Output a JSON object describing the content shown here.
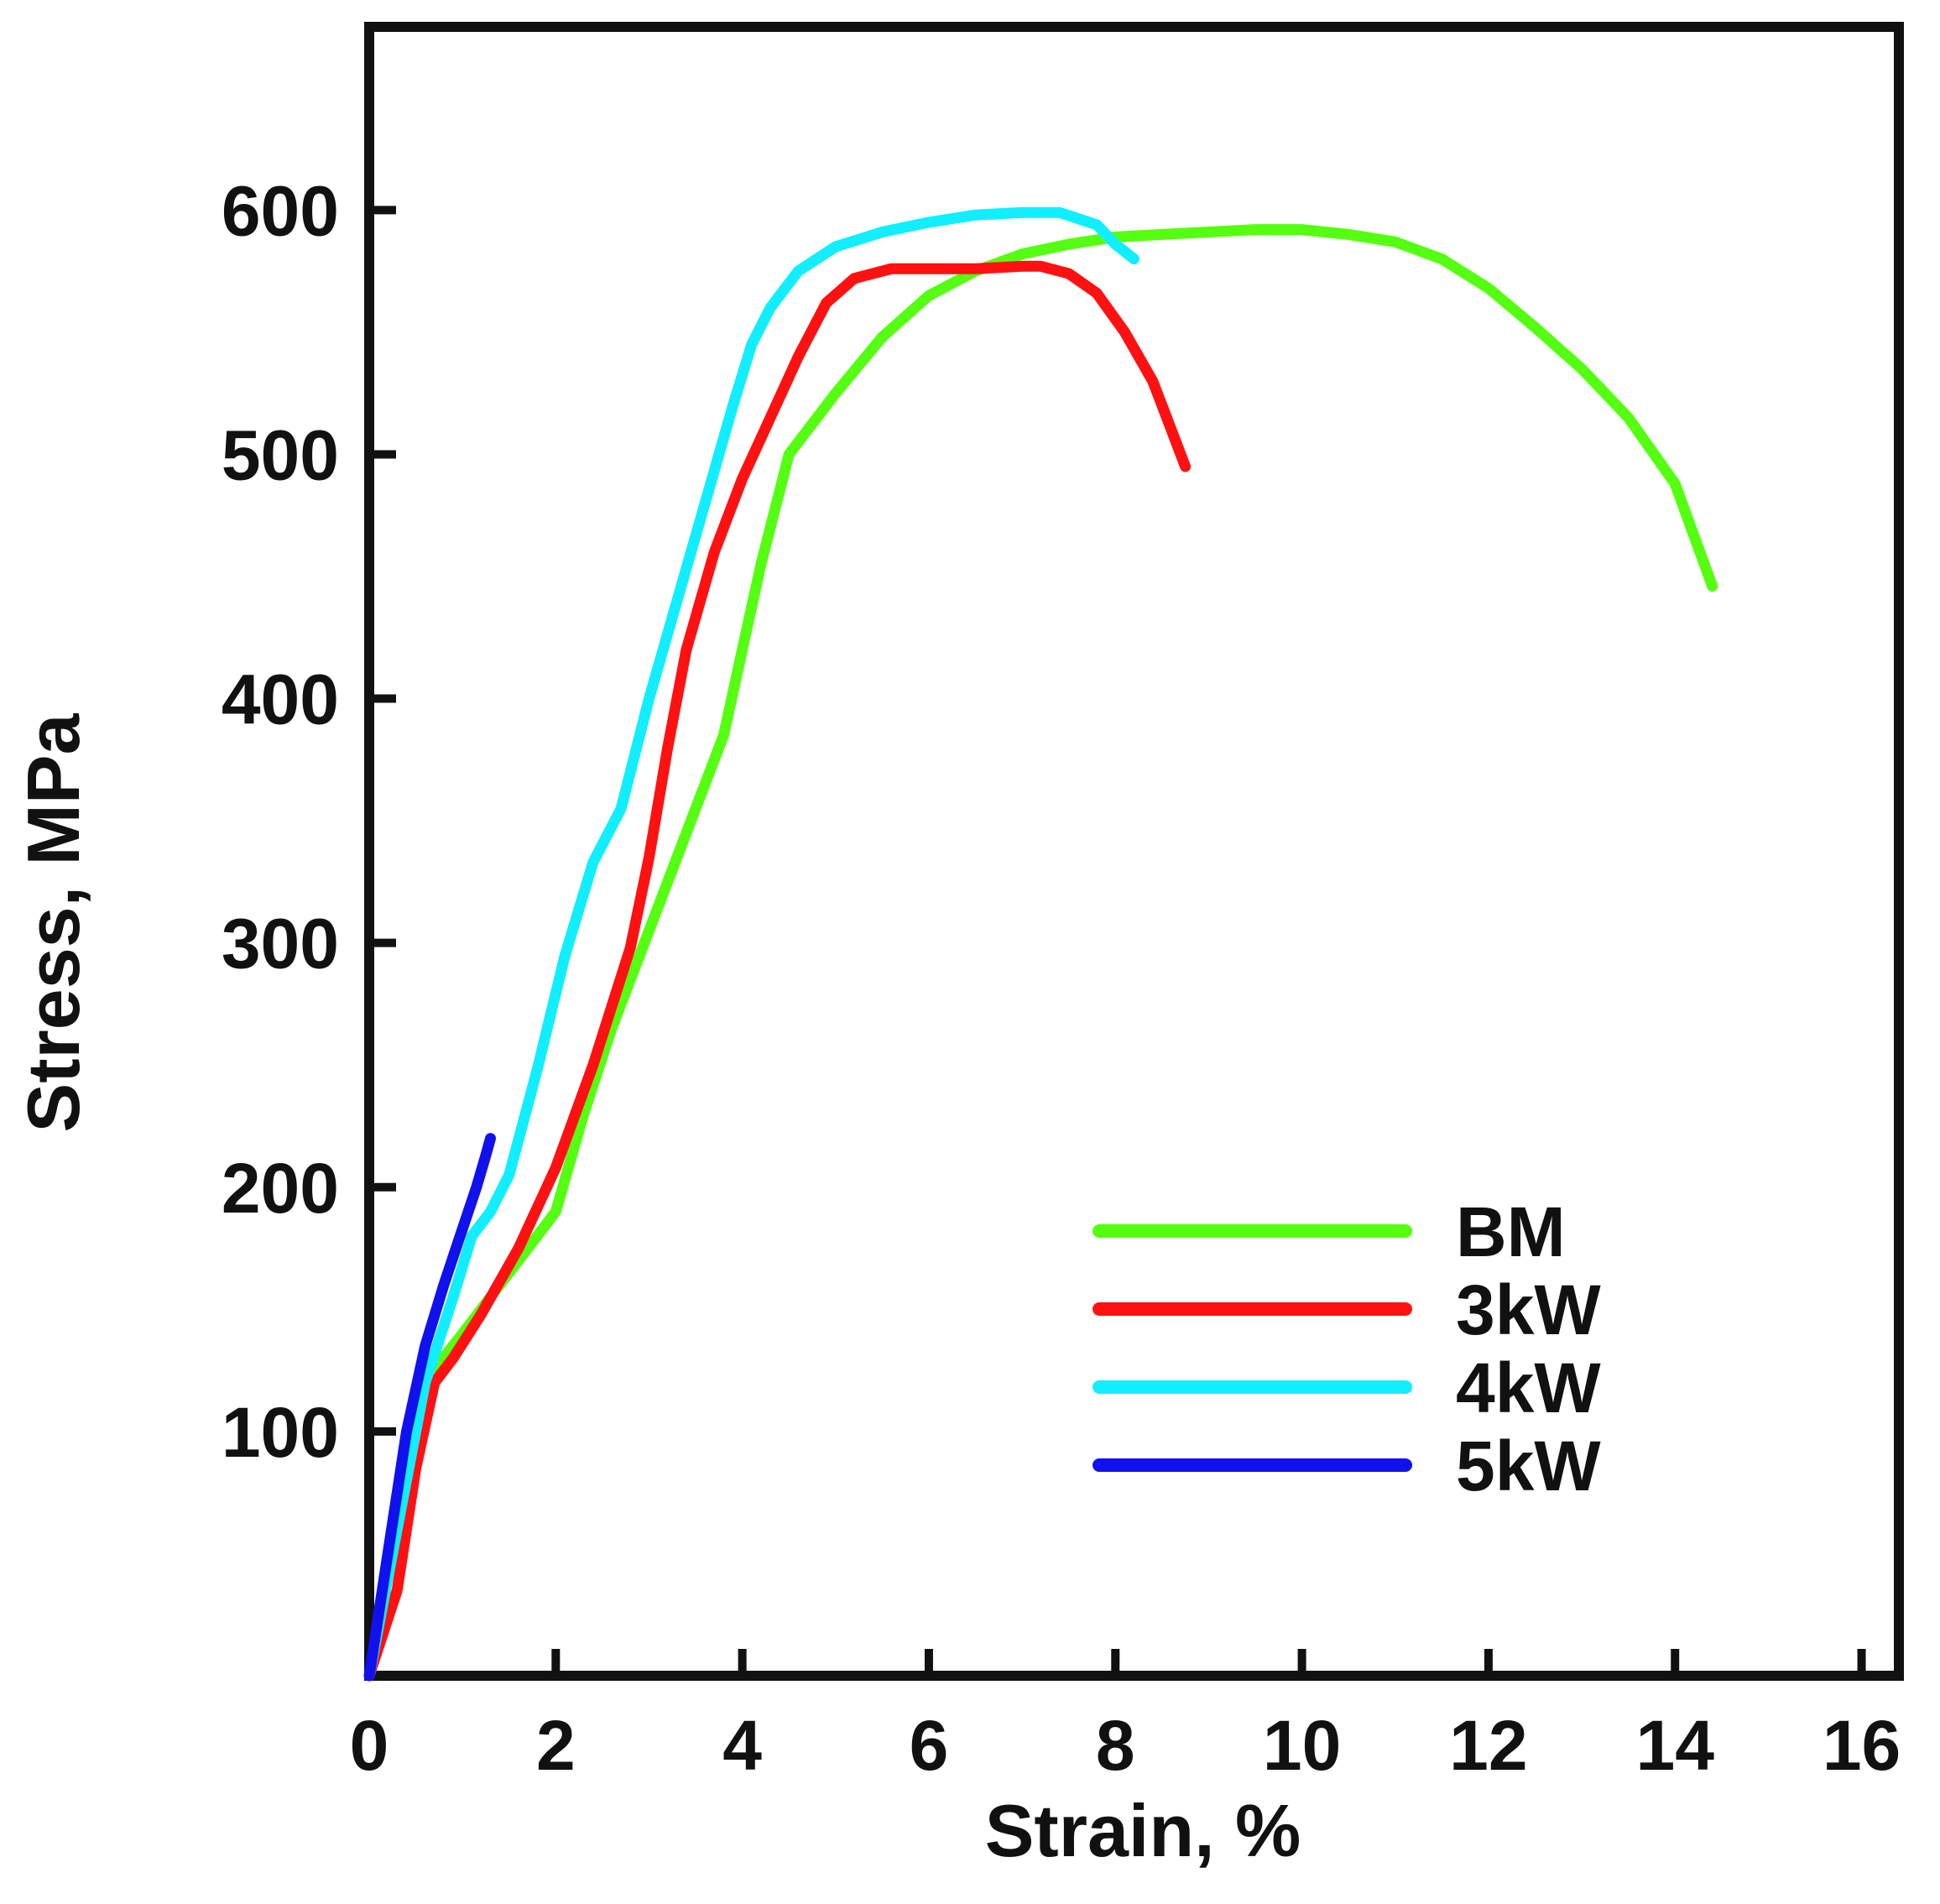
{
  "chart_data": {
    "type": "line",
    "title": "",
    "xlabel": "Strain, %",
    "ylabel": "Stress, MPa",
    "xlim": [
      0,
      16.4
    ],
    "ylim": [
      0,
      675
    ],
    "x_ticks": [
      0,
      2,
      4,
      6,
      8,
      10,
      12,
      14,
      16
    ],
    "y_ticks": [
      100,
      200,
      300,
      400,
      500,
      600
    ],
    "grid": false,
    "legend_position": "lower-right",
    "series": [
      {
        "name": "BM",
        "color": "#55ff11",
        "x": [
          0.0,
          0.3,
          0.55,
          0.75,
          1.0,
          1.3,
          1.7,
          2.0,
          2.3,
          2.6,
          3.0,
          3.4,
          3.8,
          4.0,
          4.2,
          4.5,
          5.0,
          5.5,
          6.0,
          6.5,
          7.0,
          7.5,
          8.0,
          8.5,
          9.0,
          9.5,
          10.0,
          10.5,
          11.0,
          11.5,
          12.0,
          12.5,
          13.0,
          13.5,
          14.0,
          14.4
        ],
        "y": [
          0,
          60,
          110,
          128,
          140,
          155,
          175,
          190,
          230,
          265,
          305,
          345,
          385,
          420,
          455,
          500,
          525,
          548,
          565,
          575,
          582,
          586,
          589,
          590,
          591,
          592,
          592,
          590,
          587,
          580,
          568,
          552,
          535,
          515,
          488,
          446
        ]
      },
      {
        "name": "3kW",
        "color": "#ff1111",
        "x": [
          0.0,
          0.3,
          0.5,
          0.7,
          0.9,
          1.2,
          1.6,
          2.0,
          2.4,
          2.8,
          3.0,
          3.2,
          3.4,
          3.7,
          4.0,
          4.3,
          4.6,
          4.9,
          5.2,
          5.6,
          6.0,
          6.5,
          7.0,
          7.2,
          7.5,
          7.8,
          8.1,
          8.4,
          8.6,
          8.75
        ],
        "y": [
          0,
          35,
          85,
          120,
          130,
          148,
          175,
          208,
          250,
          298,
          335,
          380,
          420,
          460,
          490,
          515,
          540,
          562,
          572,
          576,
          576,
          576,
          577,
          577,
          574,
          566,
          550,
          530,
          510,
          495
        ]
      },
      {
        "name": "4kW",
        "color": "#11eeff",
        "x": [
          0.0,
          0.3,
          0.6,
          0.9,
          1.1,
          1.3,
          1.5,
          1.8,
          2.1,
          2.4,
          2.7,
          3.0,
          3.3,
          3.6,
          3.9,
          4.1,
          4.3,
          4.6,
          5.0,
          5.5,
          6.0,
          6.5,
          7.0,
          7.4,
          7.8,
          8.0,
          8.2
        ],
        "y": [
          0,
          60,
          120,
          155,
          180,
          190,
          205,
          248,
          295,
          333,
          355,
          400,
          440,
          480,
          520,
          545,
          560,
          575,
          585,
          591,
          595,
          598,
          599,
          599,
          594,
          586,
          580
        ]
      },
      {
        "name": "5kW",
        "color": "#1111ee",
        "x": [
          0.0,
          0.2,
          0.4,
          0.6,
          0.8,
          1.0,
          1.15,
          1.25,
          1.3
        ],
        "y": [
          0,
          50,
          100,
          135,
          160,
          183,
          200,
          213,
          220
        ]
      }
    ]
  }
}
